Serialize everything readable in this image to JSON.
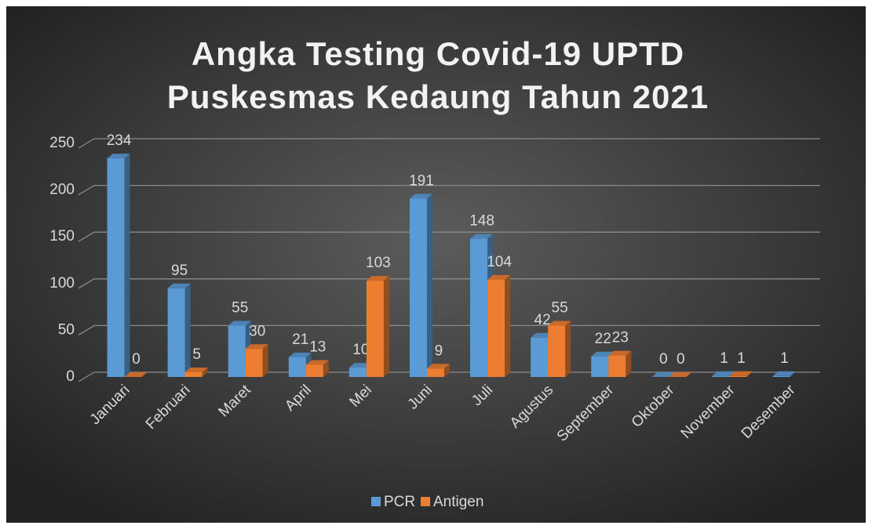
{
  "chart_data": {
    "type": "bar3d",
    "title_lines": [
      "Angka Testing Covid-19 UPTD",
      "Puskesmas Kedaung Tahun 2021"
    ],
    "categories": [
      "Januari",
      "Februari",
      "Maret",
      "April",
      "Mei",
      "Juni",
      "Juli",
      "Agustus",
      "September",
      "Oktober",
      "November",
      "Desember"
    ],
    "series": [
      {
        "name": "PCR",
        "color": "#5b9bd5",
        "values": [
          234,
          95,
          55,
          21,
          10,
          191,
          148,
          42,
          22,
          0,
          1,
          1
        ]
      },
      {
        "name": "Antigen",
        "color": "#ed7d31",
        "values": [
          0,
          5,
          30,
          13,
          103,
          9,
          104,
          55,
          23,
          0,
          1,
          null
        ]
      }
    ],
    "ylim": [
      0,
      250
    ],
    "yticks": [
      0,
      50,
      100,
      150,
      200,
      250
    ],
    "grid": true,
    "legend": "bottom"
  }
}
